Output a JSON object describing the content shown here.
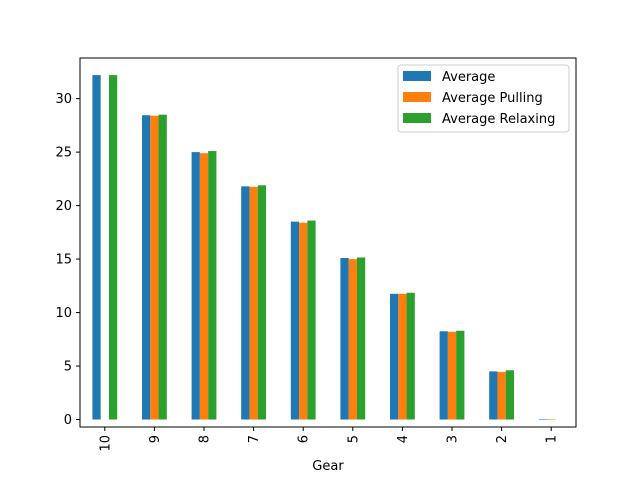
{
  "chart_data": {
    "type": "bar",
    "title": "",
    "xlabel": "Gear",
    "ylabel": "",
    "categories": [
      "10",
      "9",
      "8",
      "7",
      "6",
      "5",
      "4",
      "3",
      "2",
      "1"
    ],
    "series": [
      {
        "name": "Average",
        "color": "#1f77b4",
        "values": [
          32.2,
          28.45,
          25.0,
          21.8,
          18.5,
          15.1,
          11.75,
          8.25,
          4.5,
          0.05
        ]
      },
      {
        "name": "Average Pulling",
        "color": "#ff7f0e",
        "values": [
          0,
          28.4,
          24.9,
          21.75,
          18.4,
          15.0,
          11.75,
          8.2,
          4.45,
          0.05
        ]
      },
      {
        "name": "Average Relaxing",
        "color": "#2ca02c",
        "values": [
          32.2,
          28.5,
          25.1,
          21.9,
          18.6,
          15.15,
          11.85,
          8.3,
          4.6,
          0
        ]
      }
    ],
    "ylim": [
      -0.7,
      33.8
    ],
    "yticks": [
      0,
      5,
      10,
      15,
      20,
      25,
      30
    ],
    "grid": false,
    "legend_position": "top-right"
  }
}
